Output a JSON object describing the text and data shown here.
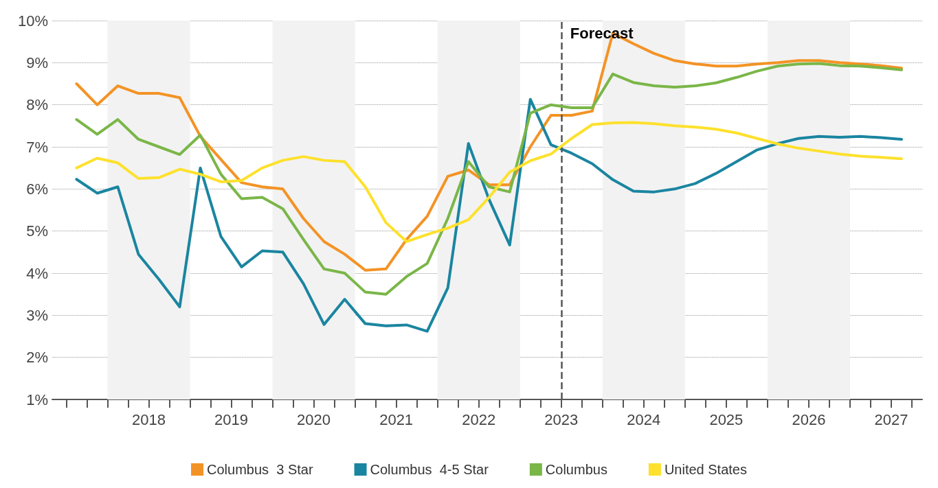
{
  "chart_data": {
    "type": "line",
    "x": [
      2017.625,
      2017.875,
      2018.125,
      2018.375,
      2018.625,
      2018.875,
      2019.125,
      2019.375,
      2019.625,
      2019.875,
      2020.125,
      2020.375,
      2020.625,
      2020.875,
      2021.125,
      2021.375,
      2021.625,
      2021.875,
      2022.125,
      2022.375,
      2022.625,
      2022.875,
      2023.125,
      2023.375,
      2023.625,
      2023.875,
      2024.125,
      2024.375,
      2024.625,
      2024.875,
      2025.125,
      2025.375,
      2025.625,
      2025.875,
      2026.125,
      2026.375,
      2026.625,
      2026.875,
      2027.125,
      2027.375,
      2027.625
    ],
    "series": [
      {
        "name": "Columbus  3 Star",
        "color": "#f39325",
        "values": [
          8.5,
          8.0,
          8.45,
          8.27,
          8.27,
          8.17,
          7.25,
          6.7,
          6.15,
          6.05,
          6.0,
          5.3,
          4.75,
          4.45,
          4.07,
          4.1,
          4.8,
          5.35,
          6.3,
          6.45,
          6.1,
          6.1,
          7.0,
          7.75,
          7.75,
          7.85,
          9.7,
          9.45,
          9.22,
          9.05,
          8.97,
          8.92,
          8.92,
          8.97,
          9.0,
          9.05,
          9.05,
          9.0,
          8.97,
          8.93,
          8.87
        ]
      },
      {
        "name": "Columbus  4-5 Star",
        "color": "#1a85a0",
        "values": [
          6.23,
          5.9,
          6.05,
          4.45,
          3.85,
          3.2,
          6.5,
          4.87,
          4.15,
          4.53,
          4.5,
          3.75,
          2.78,
          3.38,
          2.8,
          2.75,
          2.77,
          2.62,
          3.65,
          7.08,
          5.75,
          4.67,
          8.13,
          7.05,
          6.85,
          6.6,
          6.22,
          5.95,
          5.93,
          6.0,
          6.13,
          6.37,
          6.65,
          6.93,
          7.08,
          7.2,
          7.25,
          7.23,
          7.25,
          7.22,
          7.18
        ]
      },
      {
        "name": "Columbus",
        "color": "#7ab648",
        "values": [
          7.65,
          7.3,
          7.65,
          7.18,
          7.0,
          6.82,
          7.28,
          6.35,
          5.77,
          5.8,
          5.53,
          4.8,
          4.1,
          4.0,
          3.55,
          3.5,
          3.92,
          4.23,
          5.3,
          6.65,
          6.05,
          5.93,
          7.8,
          8.0,
          7.93,
          7.93,
          8.73,
          8.53,
          8.45,
          8.42,
          8.45,
          8.52,
          8.65,
          8.8,
          8.92,
          8.97,
          8.98,
          8.93,
          8.92,
          8.88,
          8.83
        ]
      },
      {
        "name": "United States",
        "color": "#fde12d",
        "values": [
          6.5,
          6.73,
          6.62,
          6.25,
          6.27,
          6.47,
          6.35,
          6.17,
          6.2,
          6.5,
          6.68,
          6.77,
          6.68,
          6.65,
          6.05,
          5.2,
          4.75,
          4.92,
          5.07,
          5.27,
          5.8,
          6.4,
          6.67,
          6.83,
          7.2,
          7.53,
          7.57,
          7.58,
          7.55,
          7.5,
          7.47,
          7.42,
          7.33,
          7.2,
          7.07,
          6.97,
          6.9,
          6.83,
          6.78,
          6.75,
          6.72
        ]
      }
    ],
    "xlim": [
      2017.33,
      2027.875
    ],
    "xticks": [
      {
        "value": 2017.5,
        "label": null
      },
      {
        "value": 2017.75,
        "label": null
      },
      {
        "value": 2018,
        "label": null
      },
      {
        "value": 2018.25,
        "label": null
      },
      {
        "value": 2018.5,
        "label": "2018"
      },
      {
        "value": 2018.75,
        "label": null
      },
      {
        "value": 2019,
        "label": null
      },
      {
        "value": 2019.25,
        "label": null
      },
      {
        "value": 2019.5,
        "label": "2019"
      },
      {
        "value": 2019.75,
        "label": null
      },
      {
        "value": 2020,
        "label": null
      },
      {
        "value": 2020.25,
        "label": null
      },
      {
        "value": 2020.5,
        "label": "2020"
      },
      {
        "value": 2020.75,
        "label": null
      },
      {
        "value": 2021,
        "label": null
      },
      {
        "value": 2021.25,
        "label": null
      },
      {
        "value": 2021.5,
        "label": "2021"
      },
      {
        "value": 2021.75,
        "label": null
      },
      {
        "value": 2022,
        "label": null
      },
      {
        "value": 2022.25,
        "label": null
      },
      {
        "value": 2022.5,
        "label": "2022"
      },
      {
        "value": 2022.75,
        "label": null
      },
      {
        "value": 2023,
        "label": null
      },
      {
        "value": 2023.25,
        "label": null
      },
      {
        "value": 2023.5,
        "label": "2023"
      },
      {
        "value": 2023.75,
        "label": null
      },
      {
        "value": 2024,
        "label": null
      },
      {
        "value": 2024.25,
        "label": null
      },
      {
        "value": 2024.5,
        "label": "2024"
      },
      {
        "value": 2024.75,
        "label": null
      },
      {
        "value": 2025,
        "label": null
      },
      {
        "value": 2025.25,
        "label": null
      },
      {
        "value": 2025.5,
        "label": "2025"
      },
      {
        "value": 2025.75,
        "label": null
      },
      {
        "value": 2026,
        "label": null
      },
      {
        "value": 2026.25,
        "label": null
      },
      {
        "value": 2026.5,
        "label": "2026"
      },
      {
        "value": 2026.75,
        "label": null
      },
      {
        "value": 2027,
        "label": null
      },
      {
        "value": 2027.25,
        "label": null
      },
      {
        "value": 2027.5,
        "label": "2027"
      },
      {
        "value": 2027.75,
        "label": null
      }
    ],
    "ylim": [
      1,
      10
    ],
    "yticks": [
      {
        "value": 1,
        "label": "1%"
      },
      {
        "value": 2,
        "label": "2%"
      },
      {
        "value": 3,
        "label": "3%"
      },
      {
        "value": 4,
        "label": "4%"
      },
      {
        "value": 5,
        "label": "5%"
      },
      {
        "value": 6,
        "label": "6%"
      },
      {
        "value": 7,
        "label": "7%"
      },
      {
        "value": 8,
        "label": "8%"
      },
      {
        "value": 9,
        "label": "9%"
      },
      {
        "value": 10,
        "label": "10%"
      }
    ],
    "grid": "y",
    "legend": "bottom",
    "marker": "none",
    "line_style": "solid",
    "ref_lines": [
      {
        "axis": "x",
        "value": 2023.5,
        "label": "Forecast",
        "color": "#555555",
        "line_style": "dashed"
      }
    ],
    "bands": [
      {
        "axis": "x",
        "from": 2018,
        "to": 2019,
        "color": "#f2f2f2"
      },
      {
        "axis": "x",
        "from": 2020,
        "to": 2021,
        "color": "#f2f2f2"
      },
      {
        "axis": "x",
        "from": 2022,
        "to": 2023,
        "color": "#f2f2f2"
      },
      {
        "axis": "x",
        "from": 2024,
        "to": 2025,
        "color": "#f2f2f2"
      },
      {
        "axis": "x",
        "from": 2026,
        "to": 2027,
        "color": "#f2f2f2"
      }
    ]
  }
}
